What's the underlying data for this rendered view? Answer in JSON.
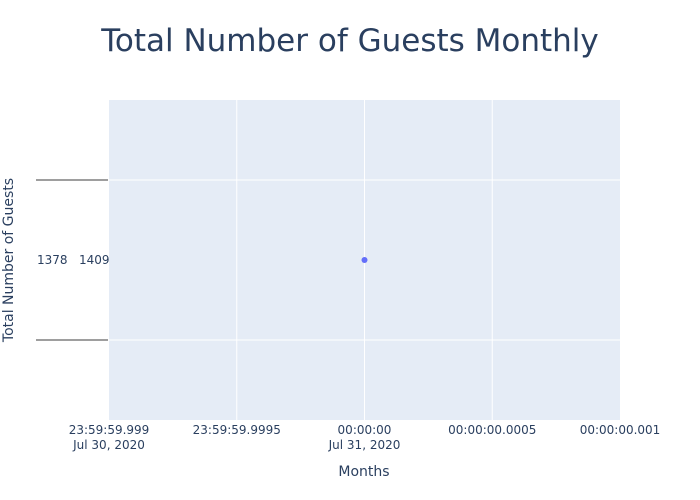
{
  "chart_data": {
    "type": "scatter",
    "title": "Total Number of Guests Monthly",
    "xlabel": "Months",
    "ylabel": "Total Number of Guests",
    "x_ticks": [
      {
        "label": "23:59:59.999",
        "sublabel": "Jul 30, 2020"
      },
      {
        "label": "23:59:59.9995",
        "sublabel": ""
      },
      {
        "label": "00:00:00",
        "sublabel": "Jul 31, 2020"
      },
      {
        "label": "00:00:00.0005",
        "sublabel": ""
      },
      {
        "label": "00:00:00.001",
        "sublabel": ""
      }
    ],
    "y_tick_text": "1378   1409",
    "x": [
      "2020-07-31 00:00:00"
    ],
    "xlim": [
      "2020-07-30 23:59:59.999",
      "2020-07-31 00:00:00.001"
    ],
    "y_categories": [
      "1378   1409"
    ],
    "points": [
      {
        "x": "2020-07-31 00:00:00",
        "y": "1378   1409"
      }
    ],
    "grid": true,
    "colors": {
      "plot_bg": "#e5ecf6",
      "grid": "#ffffff",
      "marker": "#636efa",
      "text": "#2a3f5f",
      "tick_line": "#7f7f7f"
    }
  }
}
